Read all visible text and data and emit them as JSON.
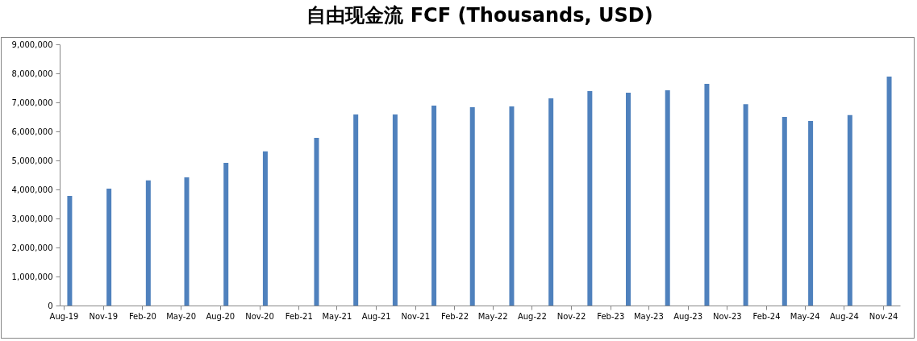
{
  "chart_data": {
    "type": "bar",
    "title": "自由现金流 FCF (Thousands, USD)",
    "x": [
      "2019-08-15",
      "2019-11-15",
      "2020-02-15",
      "2020-05-15",
      "2020-08-15",
      "2020-11-15",
      "2021-03-15",
      "2021-06-15",
      "2021-09-15",
      "2021-12-15",
      "2022-03-15",
      "2022-06-15",
      "2022-09-15",
      "2022-12-15",
      "2023-03-15",
      "2023-06-15",
      "2023-09-15",
      "2023-12-15",
      "2024-03-15",
      "2024-05-15",
      "2024-08-15",
      "2024-11-15"
    ],
    "values": [
      3780000,
      4030000,
      4310000,
      4420000,
      4920000,
      5310000,
      5780000,
      6580000,
      6580000,
      6890000,
      6830000,
      6860000,
      7140000,
      7390000,
      7330000,
      7420000,
      7640000,
      6940000,
      6500000,
      6360000,
      6560000,
      7890000
    ],
    "color": "#4f81bd",
    "xlim": [
      "2019-08",
      "2024-12"
    ],
    "xticks": [
      {
        "value": "2019-08",
        "label": "Aug-19"
      },
      {
        "value": "2019-11",
        "label": "Nov-19"
      },
      {
        "value": "2020-02",
        "label": "Feb-20"
      },
      {
        "value": "2020-05",
        "label": "May-20"
      },
      {
        "value": "2020-08",
        "label": "Aug-20"
      },
      {
        "value": "2020-11",
        "label": "Nov-20"
      },
      {
        "value": "2021-02",
        "label": "Feb-21"
      },
      {
        "value": "2021-05",
        "label": "May-21"
      },
      {
        "value": "2021-08",
        "label": "Aug-21"
      },
      {
        "value": "2021-11",
        "label": "Nov-21"
      },
      {
        "value": "2022-02",
        "label": "Feb-22"
      },
      {
        "value": "2022-05",
        "label": "May-22"
      },
      {
        "value": "2022-08",
        "label": "Aug-22"
      },
      {
        "value": "2022-11",
        "label": "Nov-22"
      },
      {
        "value": "2023-02",
        "label": "Feb-23"
      },
      {
        "value": "2023-05",
        "label": "May-23"
      },
      {
        "value": "2023-08",
        "label": "Aug-23"
      },
      {
        "value": "2023-11",
        "label": "Nov-23"
      },
      {
        "value": "2024-02",
        "label": "Feb-24"
      },
      {
        "value": "2024-05",
        "label": "May-24"
      },
      {
        "value": "2024-08",
        "label": "Aug-24"
      },
      {
        "value": "2024-11",
        "label": "Nov-24"
      }
    ],
    "ylim": [
      0,
      9000000
    ],
    "yticks": [
      0,
      {
        "value": 1000000,
        "label": "1,000,000"
      },
      {
        "value": 2000000,
        "label": "2,000,000"
      },
      {
        "value": 3000000,
        "label": "3,000,000"
      },
      {
        "value": 4000000,
        "label": "4,000,000"
      },
      {
        "value": 5000000,
        "label": "5,000,000"
      },
      {
        "value": 6000000,
        "label": "6,000,000"
      },
      {
        "value": 7000000,
        "label": "7,000,000"
      },
      {
        "value": 8000000,
        "label": "8,000,000"
      },
      {
        "value": 9000000,
        "label": "9,000,000"
      }
    ]
  }
}
